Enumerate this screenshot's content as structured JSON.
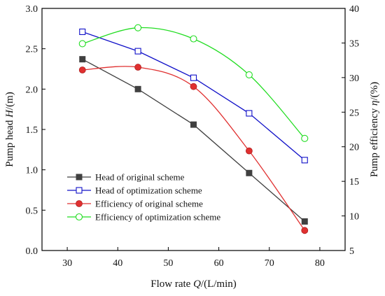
{
  "chart_data": {
    "type": "line",
    "title": "",
    "x": [
      33,
      44,
      55,
      66,
      77
    ],
    "xlabel": {
      "prefix": "Flow rate ",
      "symbol": "Q",
      "suffix": "/(L/min)"
    },
    "xlim": [
      25,
      85
    ],
    "xticks": [
      30,
      40,
      50,
      60,
      70,
      80
    ],
    "ylabel_left": {
      "prefix": "Pump head ",
      "symbol": "H",
      "suffix": "/(m)"
    },
    "ylim_left": [
      0.0,
      3.0
    ],
    "yticks_left": [
      "0.0",
      "0.5",
      "1.0",
      "1.5",
      "2.0",
      "2.5",
      "3.0"
    ],
    "ylabel_right": {
      "prefix": "Pump efficiency ",
      "symbol": "η",
      "suffix": "/(%)"
    },
    "ylim_right": [
      5,
      40
    ],
    "yticks_right": [
      "5",
      "10",
      "15",
      "20",
      "25",
      "30",
      "35",
      "40"
    ],
    "legend_position": "lower-left",
    "grid": false,
    "series": [
      {
        "name": "Head of original scheme",
        "axis": "left",
        "values": [
          2.37,
          2.0,
          1.56,
          0.96,
          0.36
        ],
        "color": "#404040",
        "marker": "filled-square",
        "smooth": false
      },
      {
        "name": "Head of optimization scheme",
        "axis": "left",
        "values": [
          2.71,
          2.47,
          2.14,
          1.7,
          1.12
        ],
        "color": "#1010c8",
        "marker": "open-square",
        "smooth": false
      },
      {
        "name": "Efficiency of original scheme",
        "axis": "right",
        "values": [
          31.1,
          31.5,
          28.7,
          19.4,
          7.9
        ],
        "color": "#e03030",
        "marker": "filled-circle",
        "smooth": true
      },
      {
        "name": "Efficiency of optimization scheme",
        "axis": "right",
        "values": [
          34.9,
          37.2,
          35.6,
          30.4,
          21.2
        ],
        "color": "#22dd22",
        "marker": "open-circle",
        "smooth": true
      }
    ]
  }
}
